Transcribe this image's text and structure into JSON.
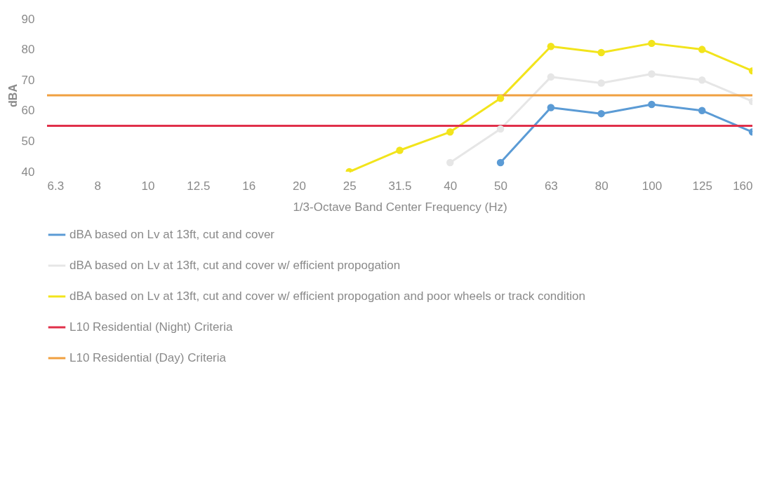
{
  "chart_data": {
    "type": "line",
    "xlabel": "1/3-Octave Band Center Frequency (Hz)",
    "ylabel": "dBA",
    "categories": [
      "6.3",
      "8",
      "10",
      "12.5",
      "16",
      "20",
      "25",
      "31.5",
      "40",
      "50",
      "63",
      "80",
      "100",
      "125",
      "160"
    ],
    "ylim": [
      40,
      90
    ],
    "yticks": [
      40,
      50,
      60,
      70,
      80,
      90
    ],
    "grid": false,
    "legend": "bottom",
    "series": [
      {
        "name": "dBA based on Lv at 13ft, cut and cover",
        "color": "#5b9bd5",
        "marker": "circle",
        "values": [
          null,
          null,
          null,
          null,
          null,
          null,
          null,
          null,
          null,
          43,
          61,
          59,
          62,
          60,
          53
        ]
      },
      {
        "name": "dBA based on Lv at 13ft, cut and cover w/ efficient propogation",
        "color": "#e6e6e6",
        "marker": "circle",
        "values": [
          null,
          null,
          null,
          null,
          null,
          null,
          null,
          null,
          43,
          54,
          71,
          69,
          72,
          70,
          63
        ]
      },
      {
        "name": "dBA based on Lv at 13ft, cut and cover w/ efficient propogation and poor wheels or track condition",
        "color": "#f2e41c",
        "marker": "circle",
        "values": [
          null,
          null,
          null,
          null,
          null,
          null,
          40,
          47,
          53,
          64,
          81,
          79,
          82,
          80,
          73
        ]
      },
      {
        "name": "L10 Residential (Night) Criteria",
        "color": "#e0304a",
        "marker": "none",
        "values": [
          55,
          55,
          55,
          55,
          55,
          55,
          55,
          55,
          55,
          55,
          55,
          55,
          55,
          55,
          55
        ]
      },
      {
        "name": "L10 Residential (Day) Criteria",
        "color": "#f0a040",
        "marker": "none",
        "values": [
          65,
          65,
          65,
          65,
          65,
          65,
          65,
          65,
          65,
          65,
          65,
          65,
          65,
          65,
          65
        ]
      }
    ]
  }
}
